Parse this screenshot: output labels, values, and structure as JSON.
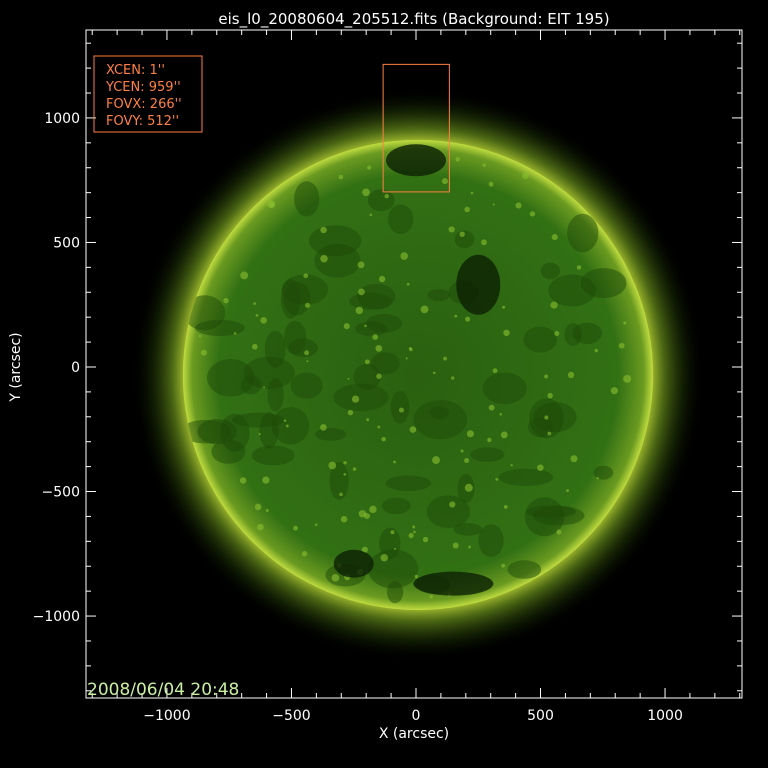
{
  "chart_data": {
    "type": "image",
    "title": "eis_l0_20080604_205512.fits  (Background: EIT 195)",
    "xlabel": "X (arcsec)",
    "ylabel": "Y (arcsec)",
    "xlim": [
      -1325,
      1309
    ],
    "ylim": [
      -1329,
      1353
    ],
    "xticks": [
      -1000,
      -500,
      0,
      500,
      1000
    ],
    "yticks": [
      -1000,
      -500,
      0,
      500,
      1000
    ],
    "minor_tick_step": 100,
    "timestamp": "2008/06/04 20:48",
    "sun": {
      "center": [
        8,
        -32
      ],
      "radius": 944
    },
    "fov_box": {
      "xcen": 1,
      "ycen": 959,
      "fovx": 266,
      "fovy": 512
    },
    "info_lines": [
      "XCEN:  1''",
      "YCEN:  959''",
      "FOVX:  266''",
      "FOVY:  512''"
    ],
    "colors": {
      "box": "#ff8040",
      "timestamp": "#c8f0a0",
      "disk": "#2f6a10",
      "limb": "#c8e040",
      "axes": "#ffffff"
    }
  }
}
